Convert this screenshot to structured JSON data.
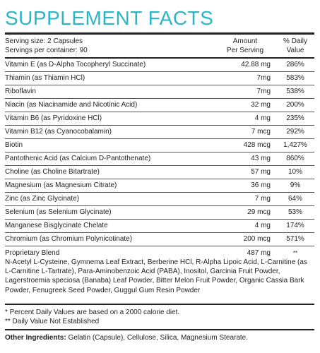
{
  "title": "SUPPLEMENT FACTS",
  "header": {
    "serving_size": "Serving size: 2 Capsules",
    "servings_per_container": "Servings per container: 90",
    "amount_line1": "Amount",
    "amount_line2": "Per Serving",
    "dv_line1": "% Daily",
    "dv_line2": "Value"
  },
  "nutrients": [
    {
      "name": "Vitamin E (as D-Alpha Tocopheryl Succinate)",
      "amount": "42.88 mg",
      "dv": "286%"
    },
    {
      "name": "Thiamin (as Thiamin HCl)",
      "amount": "7mg",
      "dv": "583%"
    },
    {
      "name": "Riboflavin",
      "amount": "7mg",
      "dv": "538%"
    },
    {
      "name": "Niacin (as Niacinamide and Nicotinic Acid)",
      "amount": "32 mg",
      "dv": "200%"
    },
    {
      "name": "Vitamin B6 (as Pyridoxine HCl)",
      "amount": "4 mg",
      "dv": "235%"
    },
    {
      "name": "Vitamin B12 (as Cyanocobalamin)",
      "amount": "7 mcg",
      "dv": "292%"
    },
    {
      "name": "Biotin",
      "amount": "428 mcg",
      "dv": "1,427%"
    },
    {
      "name": "Pantothenic Acid (as Calcium D-Pantothenate)",
      "amount": "43 mg",
      "dv": "860%"
    },
    {
      "name": "Choline (as Choline Bitartrate)",
      "amount": "57 mg",
      "dv": "10%"
    },
    {
      "name": "Magnesium (as Magnesium Citrate)",
      "amount": "36 mg",
      "dv": "9%"
    },
    {
      "name": "Zinc (as Zinc Glycinate)",
      "amount": "7 mg",
      "dv": "64%"
    },
    {
      "name": "Selenium (as Selenium Glycinate)",
      "amount": "29 mcg",
      "dv": "53%"
    },
    {
      "name": "Manganese Bisglycinate Chelate",
      "amount": "4 mg",
      "dv": "174%"
    },
    {
      "name": "Chromium (as Chromium Polynicotinate)",
      "amount": "200 mcg",
      "dv": "571%"
    }
  ],
  "blend": {
    "name": "Proprietary Blend",
    "amount": "487 mg",
    "dv": "**",
    "ingredients": "N-Acetyl L-Cysteine, Gymnema Leaf Extract, Berberine HCl, R-Alpha Lipoic Acid, L-Carnitine (as L-Carnitine L-Tartrate), Para-Aminobenzoic Acid (PABA), Inositol, Garcinia Fruit Powder, Lagerstroemia speciosa (Banaba) Leaf Powder, Bitter Melon Fruit Powder, Organic Cassia Bark Powder, Fenugreek Seed Powder, Guggul Gum Resin Powder"
  },
  "footnotes": {
    "percent_note": "* Percent Daily Values are based on a 2000 calorie diet.",
    "dv_note": "** Daily Value Not Established"
  },
  "other": {
    "label": "Other Ingredients:",
    "text": " Gelatin (Capsule), Cellulose, Silica, Magnesium Stearate."
  },
  "colors": {
    "title": "#2bb6c7",
    "rules": "#222222"
  }
}
